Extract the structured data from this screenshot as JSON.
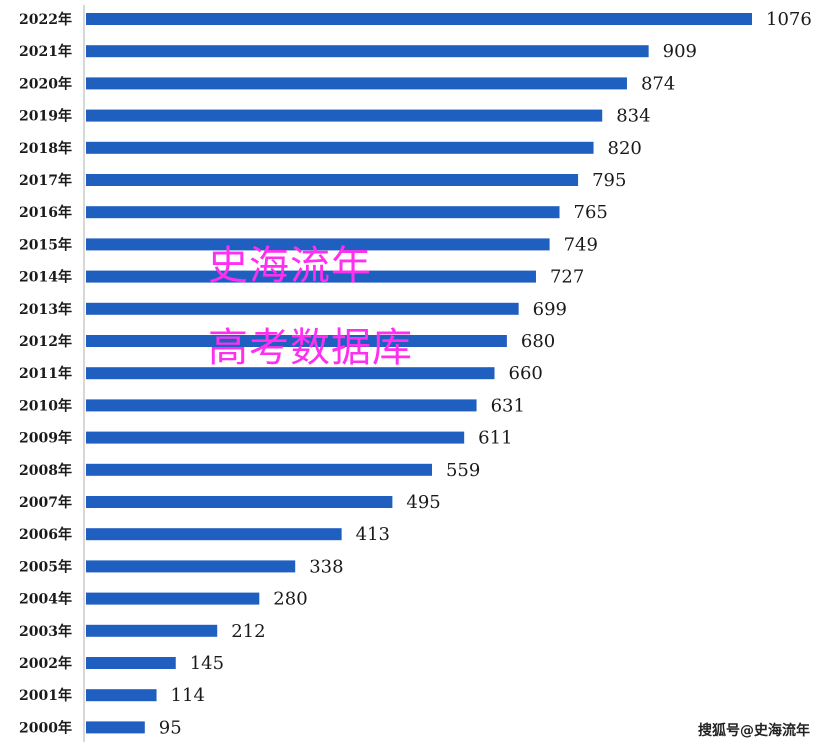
{
  "chart_data": {
    "type": "bar",
    "orientation": "horizontal",
    "categories": [
      "2022年",
      "2021年",
      "2020年",
      "2019年",
      "2018年",
      "2017年",
      "2016年",
      "2015年",
      "2014年",
      "2013年",
      "2012年",
      "2011年",
      "2010年",
      "2009年",
      "2008年",
      "2007年",
      "2006年",
      "2005年",
      "2004年",
      "2003年",
      "2002年",
      "2001年",
      "2000年"
    ],
    "values": [
      1076,
      909,
      874,
      834,
      820,
      795,
      765,
      749,
      727,
      699,
      680,
      660,
      631,
      611,
      559,
      495,
      413,
      338,
      280,
      212,
      145,
      114,
      95
    ],
    "bar_color": "#1f5fbf",
    "xlim": [
      0,
      1076
    ],
    "grid": false,
    "legend": "none"
  },
  "watermark": {
    "line1": "史海流年",
    "line2": "高考数据库",
    "color": "#ff2ff0"
  },
  "credit": "搜狐号@史海流年"
}
